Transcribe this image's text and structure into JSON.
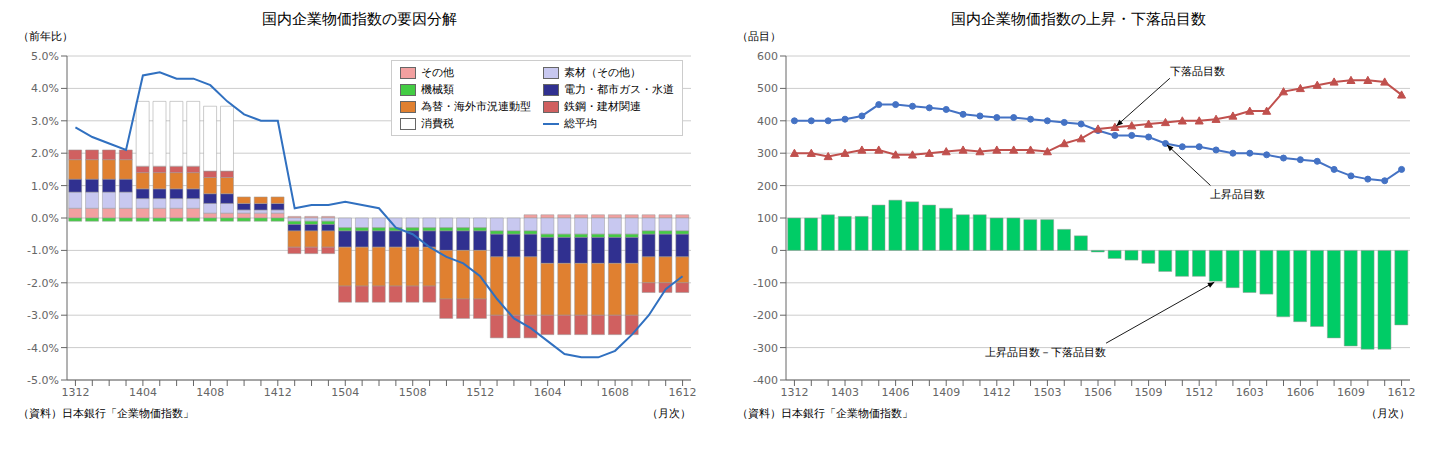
{
  "chart_data": [
    {
      "type": "bar",
      "stacked": true,
      "title": "国内企業物価指数の要因分解",
      "ylabel": "（前年比）",
      "xlabel": "（月次）",
      "source": "（資料）日本銀行「企業物価指数」",
      "categories": [
        "1312",
        null,
        null,
        null,
        "1404",
        null,
        null,
        null,
        "1408",
        null,
        null,
        null,
        "1412",
        null,
        null,
        null,
        "1504",
        null,
        null,
        null,
        "1508",
        null,
        null,
        null,
        "1512",
        null,
        null,
        null,
        "1604",
        null,
        null,
        null,
        "1608",
        null,
        null,
        null,
        "1612"
      ],
      "series": [
        {
          "name": "その他",
          "color": "#f2a0a0",
          "values": [
            0.3,
            0.3,
            0.3,
            0.3,
            0.3,
            0.3,
            0.3,
            0.3,
            0.15,
            0.15,
            0.15,
            0.15,
            0.15,
            0.05,
            0.05,
            0.05,
            0,
            0,
            0,
            0,
            0,
            0,
            0,
            0,
            0,
            0,
            0,
            0.1,
            0.1,
            0.1,
            0.1,
            0.1,
            0.1,
            0.1,
            0.1,
            0.1,
            0.1
          ]
        },
        {
          "name": "素材（その他）",
          "color": "#c8c8f0",
          "values": [
            0.5,
            0.5,
            0.5,
            0.5,
            0.3,
            0.3,
            0.3,
            0.3,
            0.3,
            0.3,
            0.1,
            0.1,
            0.1,
            -0.1,
            -0.1,
            -0.1,
            -0.3,
            -0.3,
            -0.3,
            -0.3,
            -0.3,
            -0.3,
            -0.3,
            -0.3,
            -0.3,
            -0.4,
            -0.4,
            -0.4,
            -0.5,
            -0.5,
            -0.5,
            -0.5,
            -0.5,
            -0.5,
            -0.4,
            -0.4,
            -0.4
          ]
        },
        {
          "name": "機械類",
          "color": "#44cc44",
          "values": [
            -0.1,
            -0.1,
            -0.1,
            -0.1,
            -0.1,
            -0.1,
            -0.1,
            -0.1,
            -0.1,
            -0.1,
            -0.1,
            -0.1,
            -0.1,
            -0.1,
            -0.1,
            -0.1,
            -0.1,
            -0.1,
            -0.1,
            -0.1,
            -0.1,
            -0.1,
            -0.1,
            -0.1,
            -0.1,
            -0.1,
            -0.1,
            -0.1,
            -0.1,
            -0.1,
            -0.1,
            -0.1,
            -0.1,
            -0.1,
            -0.1,
            -0.1,
            -0.1
          ]
        },
        {
          "name": "電力・都市ガス・水道",
          "color": "#303090",
          "values": [
            0.4,
            0.4,
            0.4,
            0.4,
            0.3,
            0.3,
            0.3,
            0.3,
            0.3,
            0.3,
            0.2,
            0.2,
            0.2,
            -0.2,
            -0.2,
            -0.2,
            -0.5,
            -0.5,
            -0.5,
            -0.5,
            -0.5,
            -0.5,
            -0.6,
            -0.6,
            -0.6,
            -0.7,
            -0.7,
            -0.7,
            -0.8,
            -0.8,
            -0.8,
            -0.8,
            -0.8,
            -0.8,
            -0.7,
            -0.7,
            -0.7
          ]
        },
        {
          "name": "為替・海外市況連動型",
          "color": "#e08030",
          "values": [
            0.6,
            0.6,
            0.6,
            0.6,
            0.5,
            0.5,
            0.5,
            0.5,
            0.5,
            0.5,
            0.2,
            0.2,
            0.2,
            -0.5,
            -0.5,
            -0.5,
            -1.2,
            -1.2,
            -1.2,
            -1.2,
            -1.2,
            -1.2,
            -1.5,
            -1.5,
            -1.5,
            -1.8,
            -1.8,
            -1.8,
            -1.6,
            -1.6,
            -1.6,
            -1.6,
            -1.6,
            -1.6,
            -0.8,
            -0.8,
            -0.8
          ]
        },
        {
          "name": "鉄鋼・建材関連",
          "color": "#d06060",
          "values": [
            0.3,
            0.3,
            0.3,
            0.3,
            0.2,
            0.2,
            0.2,
            0.2,
            0.2,
            0.2,
            0.0,
            0.0,
            0.0,
            -0.2,
            -0.2,
            -0.2,
            -0.5,
            -0.5,
            -0.5,
            -0.5,
            -0.5,
            -0.5,
            -0.6,
            -0.6,
            -0.6,
            -0.7,
            -0.7,
            -0.7,
            -0.6,
            -0.6,
            -0.6,
            -0.6,
            -0.6,
            -0.6,
            -0.3,
            -0.3,
            -0.3
          ]
        },
        {
          "name": "消費税",
          "color": "#ffffff",
          "values": [
            0,
            0,
            0,
            0,
            2.0,
            2.0,
            2.0,
            2.0,
            2.0,
            2.0,
            0,
            0,
            0,
            0,
            0,
            0,
            0,
            0,
            0,
            0,
            0,
            0,
            0,
            0,
            0,
            0,
            0,
            0,
            0,
            0,
            0,
            0,
            0,
            0,
            0,
            0,
            0
          ]
        },
        {
          "name": "総平均",
          "type": "line",
          "color": "#3070c0",
          "values": [
            2.8,
            2.5,
            2.3,
            2.1,
            4.4,
            4.5,
            4.3,
            4.3,
            4.1,
            3.6,
            3.2,
            3.0,
            3.0,
            0.3,
            0.4,
            0.4,
            0.5,
            0.4,
            0.3,
            -0.3,
            -0.5,
            -0.9,
            -1.2,
            -1.4,
            -1.8,
            -2.5,
            -3.1,
            -3.4,
            -3.8,
            -4.2,
            -4.3,
            -4.3,
            -4.1,
            -3.6,
            -3.0,
            -2.2,
            -1.8
          ]
        }
      ],
      "ylim": [
        -5.0,
        5.0
      ],
      "yticks": [
        {
          "value": -5.0,
          "label": "-5.0%"
        },
        {
          "value": -4.0,
          "label": "-4.0%"
        },
        {
          "value": -3.0,
          "label": "-3.0%"
        },
        {
          "value": -2.0,
          "label": "-2.0%"
        },
        {
          "value": -1.0,
          "label": "-1.0%"
        },
        {
          "value": 0.0,
          "label": "0.0%"
        },
        {
          "value": 1.0,
          "label": "1.0%"
        },
        {
          "value": 2.0,
          "label": "2.0%"
        },
        {
          "value": 3.0,
          "label": "3.0%"
        },
        {
          "value": 4.0,
          "label": "4.0%"
        },
        {
          "value": 5.0,
          "label": "5.0%"
        }
      ],
      "grid": true,
      "legend": "upper right"
    },
    {
      "type": "bar",
      "title": "国内企業物価指数の上昇・下落品目数",
      "ylabel": "（品目）",
      "xlabel": "（月次）",
      "source": "（資料）日本銀行「企業物価指数」",
      "categories": [
        "1312",
        null,
        null,
        "1403",
        null,
        null,
        "1406",
        null,
        null,
        "1409",
        null,
        null,
        "1412",
        null,
        null,
        "1503",
        null,
        null,
        "1506",
        null,
        null,
        "1509",
        null,
        null,
        "1512",
        null,
        null,
        "1603",
        null,
        null,
        "1606",
        null,
        null,
        "1609",
        null,
        null,
        "1612"
      ],
      "series": [
        {
          "name": "上昇品目数－下落品目数",
          "type": "bar",
          "color": "#00cc66",
          "values": [
            100,
            100,
            110,
            105,
            105,
            140,
            155,
            150,
            140,
            130,
            110,
            110,
            100,
            100,
            95,
            95,
            65,
            45,
            -5,
            -25,
            -30,
            -40,
            -65,
            -80,
            -80,
            -95,
            -115,
            -130,
            -135,
            -205,
            -220,
            -235,
            -270,
            -295,
            -305,
            -305,
            -230
          ]
        },
        {
          "name": "上昇品目数",
          "type": "line",
          "color": "#4472c4",
          "marker": "circle",
          "values": [
            400,
            400,
            400,
            405,
            415,
            450,
            450,
            445,
            440,
            435,
            420,
            415,
            410,
            410,
            405,
            400,
            395,
            390,
            370,
            355,
            355,
            350,
            330,
            320,
            320,
            310,
            300,
            300,
            295,
            285,
            280,
            275,
            250,
            230,
            220,
            215,
            250
          ]
        },
        {
          "name": "下落品目数",
          "type": "line",
          "color": "#c0504d",
          "marker": "triangle",
          "values": [
            300,
            300,
            290,
            300,
            310,
            310,
            295,
            295,
            300,
            305,
            310,
            305,
            310,
            310,
            310,
            305,
            330,
            345,
            375,
            380,
            385,
            390,
            395,
            400,
            400,
            405,
            415,
            430,
            430,
            490,
            500,
            510,
            520,
            525,
            525,
            520,
            480
          ]
        }
      ],
      "annotations": [
        {
          "text": "下落品目数",
          "x": 19
        },
        {
          "text": "上昇品目数",
          "x": 22
        },
        {
          "text": "上昇品目数－下落品目数",
          "x": 25
        }
      ],
      "ylim": [
        -400,
        600
      ],
      "yticks": [
        -400,
        -300,
        -200,
        -100,
        0,
        100,
        200,
        300,
        400,
        500,
        600
      ],
      "grid": true
    }
  ]
}
